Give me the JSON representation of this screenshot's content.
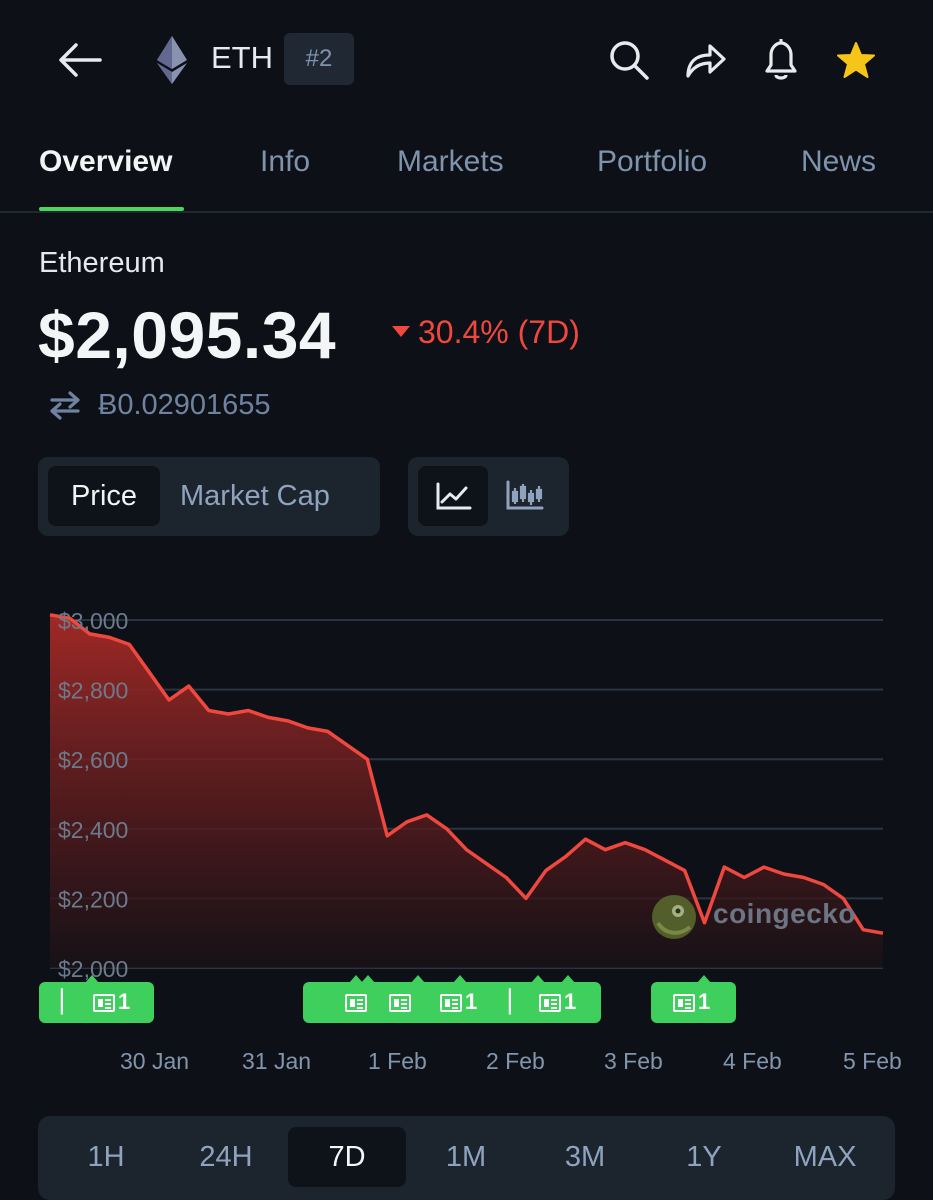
{
  "header": {
    "symbol": "ETH",
    "rank_badge": "#2",
    "icons": [
      "back-arrow-icon",
      "ethereum-logo-icon",
      "search-icon",
      "share-icon",
      "bell-icon",
      "star-icon"
    ],
    "star_color": "#f5c518"
  },
  "tabs": [
    {
      "label": "Overview",
      "active": true
    },
    {
      "label": "Info",
      "active": false
    },
    {
      "label": "Markets",
      "active": false
    },
    {
      "label": "Portfolio",
      "active": false
    },
    {
      "label": "News",
      "active": false
    }
  ],
  "coin": {
    "name": "Ethereum",
    "price": "$2,095.34",
    "change": "30.4% (7D)",
    "btc_price": "Ƀ0.02901655"
  },
  "toggles": {
    "metric_active": "Price",
    "metric_other": "Market Cap",
    "chart_type_active": "line-chart-icon",
    "chart_type_other": "candlestick-icon"
  },
  "chart_data": {
    "type": "area",
    "y_tick_labels": [
      "$3,000",
      "$2,800",
      "$2,600",
      "$2,400",
      "$2,200",
      "$2,000"
    ],
    "y_ticks": [
      3000,
      2800,
      2600,
      2400,
      2200,
      2000
    ],
    "ylim": [
      2000,
      3000
    ],
    "x_tick_labels": [
      "30 Jan",
      "31 Jan",
      "1 Feb",
      "2 Feb",
      "3 Feb",
      "4 Feb",
      "5 Feb"
    ],
    "x_ticks": [
      "2025-01-30",
      "2025-01-31",
      "2025-02-01",
      "2025-02-02",
      "2025-02-03",
      "2025-02-04",
      "2025-02-05"
    ],
    "xlim": [
      "2025-01-29",
      "2025-02-05"
    ],
    "grid": true,
    "line_color": "#f0483e",
    "series": [
      {
        "x": [
          "2025-01-29 00:00",
          "2025-01-29 04:00",
          "2025-01-29 08:00",
          "2025-01-29 12:00",
          "2025-01-29 16:00",
          "2025-01-29 20:00",
          "2025-01-30 00:00",
          "2025-01-30 04:00",
          "2025-01-30 08:00",
          "2025-01-30 12:00",
          "2025-01-30 16:00",
          "2025-01-30 20:00",
          "2025-01-31 00:00",
          "2025-01-31 04:00",
          "2025-01-31 08:00",
          "2025-01-31 12:00",
          "2025-01-31 16:00",
          "2025-01-31 20:00",
          "2025-02-01 00:00",
          "2025-02-01 04:00",
          "2025-02-01 08:00",
          "2025-02-01 12:00",
          "2025-02-01 16:00",
          "2025-02-01 20:00",
          "2025-02-02 00:00",
          "2025-02-02 04:00",
          "2025-02-02 08:00",
          "2025-02-02 12:00",
          "2025-02-02 16:00",
          "2025-02-02 20:00",
          "2025-02-03 00:00",
          "2025-02-03 04:00",
          "2025-02-03 08:00",
          "2025-02-03 12:00",
          "2025-02-03 16:00",
          "2025-02-03 20:00",
          "2025-02-04 00:00",
          "2025-02-04 04:00",
          "2025-02-04 08:00",
          "2025-02-04 12:00",
          "2025-02-04 16:00",
          "2025-02-04 20:00",
          "2025-02-05 00:00"
        ],
        "y": [
          3015,
          3005,
          2960,
          2950,
          2930,
          2850,
          2770,
          2810,
          2740,
          2730,
          2740,
          2720,
          2710,
          2690,
          2680,
          2640,
          2600,
          2380,
          2420,
          2440,
          2400,
          2340,
          2300,
          2260,
          2200,
          2280,
          2320,
          2370,
          2340,
          2360,
          2340,
          2310,
          2280,
          2130,
          2290,
          2260,
          2290,
          2270,
          2260,
          2240,
          2200,
          2110,
          2100
        ]
      }
    ]
  },
  "news_pills": [
    {
      "count": "1",
      "cluster": "30 Jan"
    },
    {
      "count": "1",
      "cluster": "1 Feb A"
    },
    {
      "count": "1",
      "cluster": "1 Feb B"
    },
    {
      "count": "1",
      "cluster": "4 Feb"
    }
  ],
  "watermark": "coingecko",
  "timeframes": [
    {
      "label": "1H",
      "active": false
    },
    {
      "label": "24H",
      "active": false
    },
    {
      "label": "7D",
      "active": true
    },
    {
      "label": "1M",
      "active": false
    },
    {
      "label": "3M",
      "active": false
    },
    {
      "label": "1Y",
      "active": false
    },
    {
      "label": "MAX",
      "active": false
    }
  ]
}
